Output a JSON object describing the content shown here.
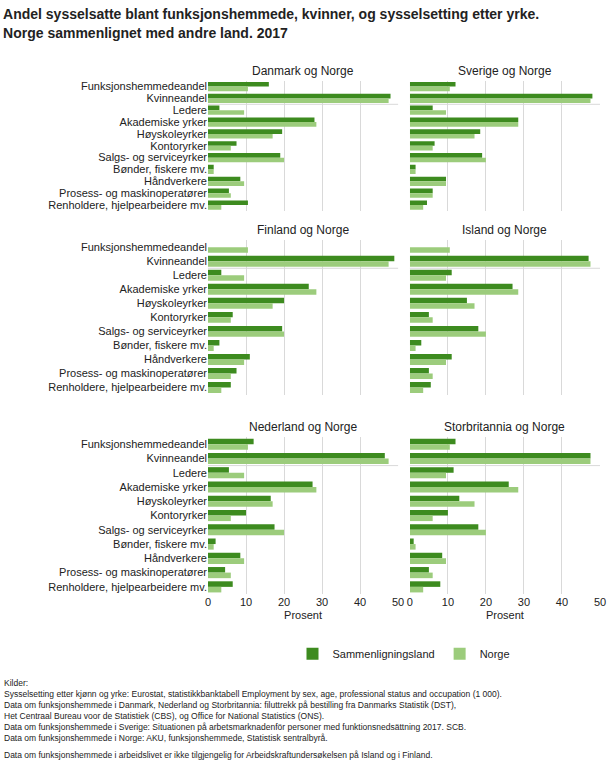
{
  "title": "Andel sysselsatte blant funksjonshemmede, kvinner, og sysselsetting etter yrke.\nNorge sammenlignet med andre land. 2017",
  "legend": "bottom",
  "sources": [
    "Kilder:",
    "Sysselsetting etter kjønn og yrke: Eurostat, statistikkbanktabell Employment by sex, age, professional status and occupation (1 000).",
    "Data om funksjonshemmede i Danmark, Nederland og Storbritannia: filuttrekk på bestilling fra Danmarks Statistik (DST),",
    "Het Centraal Bureau voor de Statistiek (CBS), og Office for National Statistics (ONS).",
    "Data om funksjonshemmede i Sverige: Situationen på arbetsmarknadenför personer med funktionsnedsättning 2017. SCB.",
    "Data om funksjonshemmede i Norge: AKU, funksjonshemmede, Statistisk sentralbyrå."
  ],
  "note": "Data om funksjonshemmede i arbeidslivet er ikke tilgjengelig for Arbeidskraftundersøkelsen på Island og i Finland.",
  "chart_data": [
    {
      "type": "bar",
      "orientation": "horizontal",
      "title": "Danmark og Norge",
      "categories": [
        "Funksjonshemmedeandel",
        "Kvinneandel",
        "Ledere",
        "Akademiske yrker",
        "Høyskoleyrker",
        "Kontoryrker",
        "Salgs- og serviceyrker",
        "Bønder, fiskere mv.",
        "Håndverkere",
        "Prosess- og maskinoperatører",
        "Renholdere, hjelpearbeidere mv."
      ],
      "series": [
        {
          "name": "Sammenligningsland",
          "color": "#3d8b1f",
          "values": [
            16,
            48,
            3,
            28,
            19.5,
            7.5,
            19,
            1.5,
            8.5,
            5.5,
            10.5
          ]
        },
        {
          "name": "Norge",
          "color": "#9ccc7c",
          "values": [
            10.5,
            47.5,
            9.5,
            28.5,
            17,
            6,
            20,
            1.5,
            9.5,
            6,
            3.5
          ]
        }
      ],
      "xlim": [
        0,
        50
      ],
      "xticks": [
        0,
        10,
        20,
        30,
        40,
        50
      ],
      "grid": true,
      "tick_labels": "y"
    },
    {
      "type": "bar",
      "orientation": "horizontal",
      "title": "Sverige og Norge",
      "categories": [
        "Funksjonshemmedeandel",
        "Kvinneandel",
        "Ledere",
        "Akademiske yrker",
        "Høyskoleyrker",
        "Kontoryrker",
        "Salgs- og serviceyrker",
        "Bønder, fiskere mv.",
        "Håndverkere",
        "Prosess- og maskinoperatører",
        "Renholdere, hjelpearbeidere mv."
      ],
      "series": [
        {
          "name": "Sammenligningsland",
          "color": "#3d8b1f",
          "values": [
            12,
            48,
            6,
            28.5,
            18.5,
            6.5,
            19,
            1.5,
            9.5,
            6,
            4.5
          ]
        },
        {
          "name": "Norge",
          "color": "#9ccc7c",
          "values": [
            10.5,
            47.5,
            9.5,
            28.5,
            17,
            6,
            20,
            1.5,
            9.5,
            6,
            3.5
          ]
        }
      ],
      "xlim": [
        0,
        50
      ],
      "xticks": [
        0,
        10,
        20,
        30,
        40,
        50
      ],
      "grid": true,
      "tick_labels": false
    },
    {
      "type": "bar",
      "orientation": "horizontal",
      "title": "Finland og Norge",
      "categories": [
        "Funksjonshemmedeandel",
        "Kvinneandel",
        "Ledere",
        "Akademiske yrker",
        "Høyskoleyrker",
        "Kontoryrker",
        "Salgs- og serviceyrker",
        "Bønder, fiskere mv.",
        "Håndverkere",
        "Prosess- og maskinoperatører",
        "Renholdere, hjelpearbeidere mv."
      ],
      "series": [
        {
          "name": "Sammenligningsland",
          "color": "#3d8b1f",
          "values": [
            null,
            49,
            3.5,
            26.5,
            20,
            6.5,
            19.5,
            3,
            11,
            7.5,
            6
          ]
        },
        {
          "name": "Norge",
          "color": "#9ccc7c",
          "values": [
            10.5,
            47.5,
            9.5,
            28.5,
            17,
            6,
            20,
            1.5,
            9.5,
            6,
            3.5
          ]
        }
      ],
      "xlim": [
        0,
        50
      ],
      "xticks": [
        0,
        10,
        20,
        30,
        40,
        50
      ],
      "grid": true,
      "tick_labels": "y"
    },
    {
      "type": "bar",
      "orientation": "horizontal",
      "title": "Island og Norge",
      "categories": [
        "Funksjonshemmedeandel",
        "Kvinneandel",
        "Ledere",
        "Akademiske yrker",
        "Høyskoleyrker",
        "Kontoryrker",
        "Salgs- og serviceyrker",
        "Bønder, fiskere mv.",
        "Håndverkere",
        "Prosess- og maskinoperatører",
        "Renholdere, hjelpearbeidere mv."
      ],
      "series": [
        {
          "name": "Sammenligningsland",
          "color": "#3d8b1f",
          "values": [
            null,
            47,
            11,
            27,
            15,
            5,
            18,
            3,
            11,
            5,
            5.5
          ]
        },
        {
          "name": "Norge",
          "color": "#9ccc7c",
          "values": [
            10.5,
            47.5,
            9.5,
            28.5,
            17,
            6,
            20,
            1.5,
            9.5,
            6,
            3.5
          ]
        }
      ],
      "xlim": [
        0,
        50
      ],
      "xticks": [
        0,
        10,
        20,
        30,
        40,
        50
      ],
      "grid": true,
      "tick_labels": false
    },
    {
      "type": "bar",
      "orientation": "horizontal",
      "title": "Nederland og Norge",
      "categories": [
        "Funksjonshemmedeandel",
        "Kvinneandel",
        "Ledere",
        "Akademiske yrker",
        "Høyskoleyrker",
        "Kontoryrker",
        "Salgs- og serviceyrker",
        "Bønder, fiskere mv.",
        "Håndverkere",
        "Prosess- og maskinoperatører",
        "Renholdere, hjelpearbeidere mv."
      ],
      "series": [
        {
          "name": "Sammenligningsland",
          "color": "#3d8b1f",
          "values": [
            12,
            46.5,
            5.5,
            27.5,
            16.5,
            10,
            17.5,
            2,
            8.5,
            4.5,
            6.5
          ]
        },
        {
          "name": "Norge",
          "color": "#9ccc7c",
          "values": [
            10.5,
            47.5,
            9.5,
            28.5,
            17,
            6,
            20,
            1.5,
            9.5,
            6,
            3.5
          ]
        }
      ],
      "xlim": [
        0,
        50
      ],
      "xticks": [
        0,
        10,
        20,
        30,
        40,
        50
      ],
      "grid": true,
      "xlabel": "Prosent"
    },
    {
      "type": "bar",
      "orientation": "horizontal",
      "title": "Storbritannia og Norge",
      "categories": [
        "Funksjonshemmedeandel",
        "Kvinneandel",
        "Ledere",
        "Akademiske yrker",
        "Høyskoleyrker",
        "Kontoryrker",
        "Salgs- og serviceyrker",
        "Bønder, fiskere mv.",
        "Håndverkere",
        "Prosess- og maskinoperatører",
        "Renholdere, hjelpearbeidere mv."
      ],
      "series": [
        {
          "name": "Sammenligningsland",
          "color": "#3d8b1f",
          "values": [
            12,
            47.5,
            11.5,
            26,
            13,
            10,
            18,
            1,
            8.5,
            5,
            8
          ]
        },
        {
          "name": "Norge",
          "color": "#9ccc7c",
          "values": [
            10.5,
            47.5,
            9.5,
            28.5,
            17,
            6,
            20,
            1.5,
            9.5,
            6,
            3.5
          ]
        }
      ],
      "xlim": [
        0,
        50
      ],
      "xticks": [
        0,
        10,
        20,
        30,
        40,
        50
      ],
      "grid": true,
      "tick_labels": "x",
      "xlabel": "Prosent"
    }
  ]
}
